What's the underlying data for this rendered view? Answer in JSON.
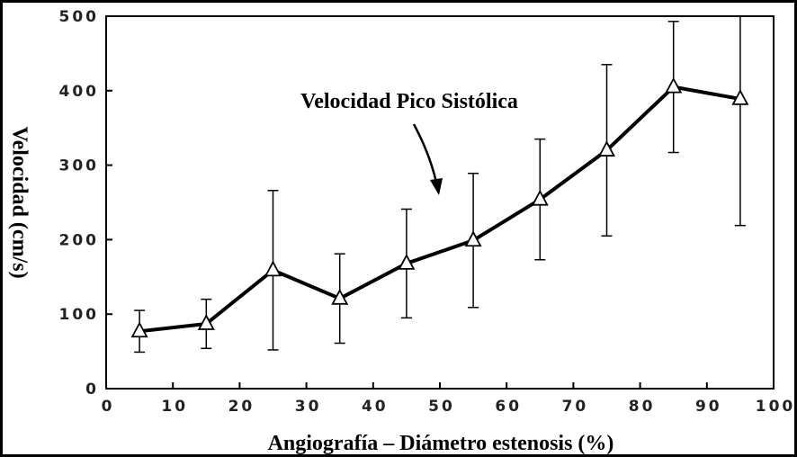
{
  "chart_data": {
    "type": "line",
    "annotation": "Velocidad Pico Sistólica",
    "x_label": "Angiografía – Diámetro estenosis (%)",
    "y_label": "Velocidad (cm/s)",
    "x": [
      5,
      15,
      25,
      35,
      45,
      55,
      65,
      75,
      85,
      95
    ],
    "values": [
      77,
      87,
      159,
      121,
      168,
      199,
      254,
      320,
      405,
      389
    ],
    "errors": [
      28,
      33,
      107,
      60,
      73,
      90,
      81,
      115,
      88,
      170
    ],
    "color": "#000000",
    "xlim": [
      0,
      100
    ],
    "xticks": [
      0,
      10,
      20,
      30,
      40,
      50,
      60,
      70,
      80,
      90,
      100
    ],
    "ylim": [
      0,
      500
    ],
    "yticks": [
      0,
      100,
      200,
      300,
      400,
      500
    ]
  }
}
